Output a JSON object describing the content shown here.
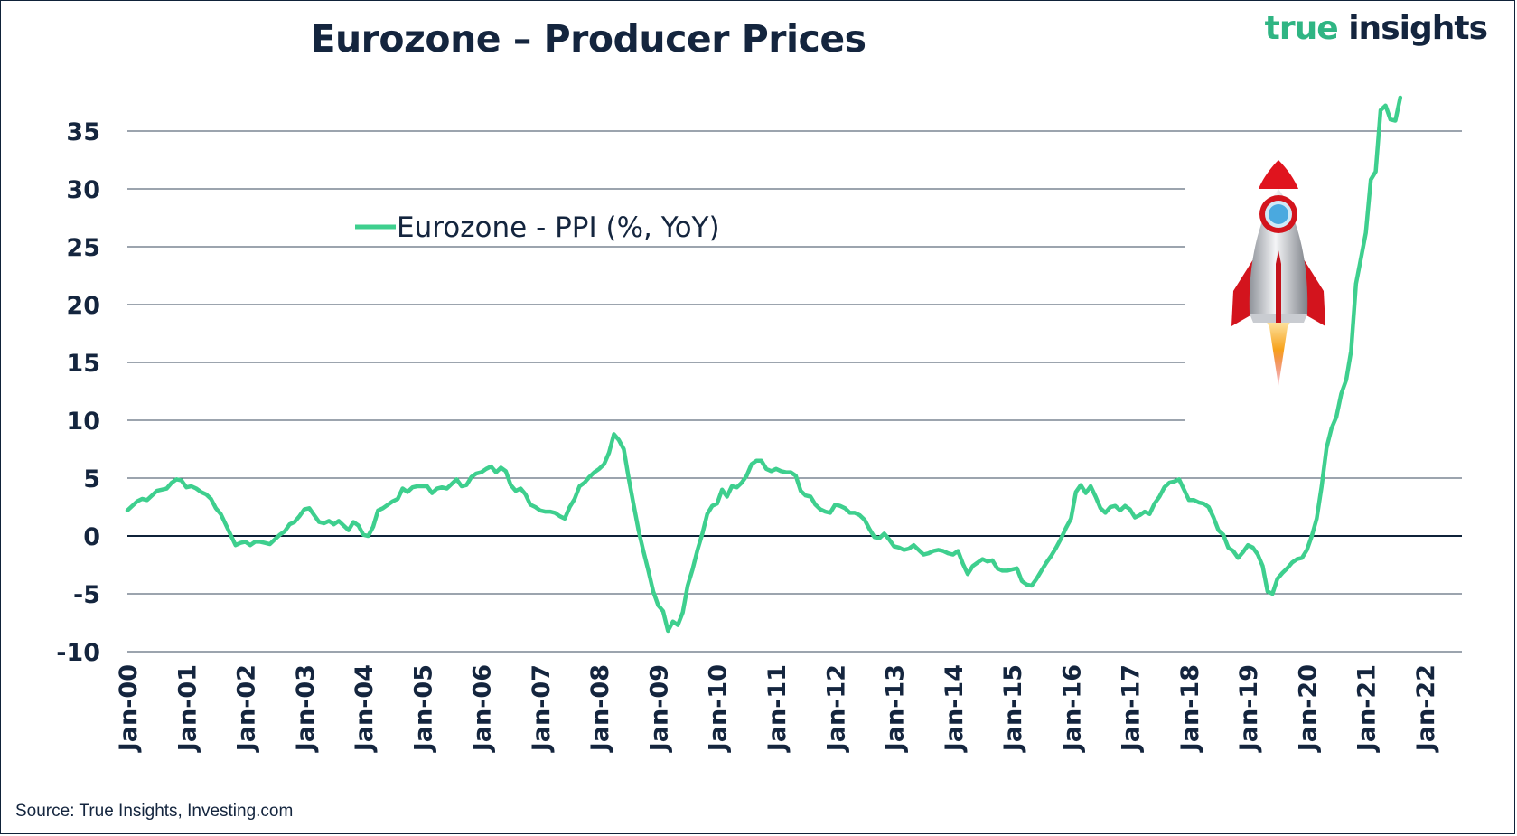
{
  "title": "Eurozone – Producer Prices",
  "logo": {
    "word1": "true",
    "word2": "insights"
  },
  "source": "Source: True Insights, Investing.com",
  "colors": {
    "line": "#3ecf8e",
    "text": "#14253e",
    "grid": "#1f3048",
    "rocket_body": "#c9ccd1",
    "rocket_red": "#e0141e",
    "flame": "#f7a21b"
  },
  "icons": [
    "rocket-icon"
  ],
  "chart_data": {
    "type": "line",
    "title": "Eurozone – Producer Prices",
    "legend_position": "upper-left",
    "grid": "horizontal",
    "ylim": [
      -10,
      38
    ],
    "yticks": [
      35,
      30,
      25,
      20,
      15,
      10,
      5,
      0,
      -5,
      -10
    ],
    "ytick_labels": [
      "35",
      "30",
      "25",
      "20",
      "15",
      "10",
      "5",
      "0",
      "-5",
      "-10"
    ],
    "xtick_labels": [
      "Jan-00",
      "Jan-01",
      "Jan-02",
      "Jan-03",
      "Jan-04",
      "Jan-05",
      "Jan-06",
      "Jan-07",
      "Jan-08",
      "Jan-09",
      "Jan-10",
      "Jan-11",
      "Jan-12",
      "Jan-13",
      "Jan-14",
      "Jan-15",
      "Jan-16",
      "Jan-17",
      "Jan-18",
      "Jan-19",
      "Jan-20",
      "Jan-21",
      "Jan-22"
    ],
    "series": [
      {
        "name": "Eurozone - PPI (%, YoY)",
        "x_start": "2000-01",
        "frequency": "monthly",
        "values": [
          2.2,
          2.6,
          3.0,
          3.2,
          3.1,
          3.5,
          3.9,
          4.0,
          4.1,
          4.6,
          4.9,
          4.8,
          4.2,
          4.3,
          4.1,
          3.8,
          3.6,
          3.2,
          2.4,
          1.9,
          1.0,
          0.1,
          -0.8,
          -0.6,
          -0.5,
          -0.8,
          -0.5,
          -0.5,
          -0.6,
          -0.7,
          -0.3,
          0.1,
          0.4,
          1.0,
          1.2,
          1.7,
          2.3,
          2.4,
          1.8,
          1.2,
          1.1,
          1.3,
          1.0,
          1.3,
          0.9,
          0.5,
          1.2,
          0.9,
          0.1,
          0.0,
          0.8,
          2.2,
          2.4,
          2.7,
          3.0,
          3.2,
          4.1,
          3.8,
          4.2,
          4.3,
          4.3,
          4.3,
          3.7,
          4.1,
          4.2,
          4.1,
          4.5,
          4.9,
          4.3,
          4.4,
          5.1,
          5.4,
          5.5,
          5.8,
          6.0,
          5.5,
          5.9,
          5.6,
          4.4,
          3.9,
          4.1,
          3.6,
          2.7,
          2.5,
          2.2,
          2.1,
          2.1,
          2.0,
          1.7,
          1.5,
          2.5,
          3.2,
          4.3,
          4.6,
          5.1,
          5.5,
          5.8,
          6.2,
          7.2,
          8.8,
          8.3,
          7.5,
          5.0,
          2.7,
          0.5,
          -1.3,
          -3.0,
          -4.8,
          -6.0,
          -6.5,
          -8.2,
          -7.4,
          -7.7,
          -6.6,
          -4.3,
          -2.9,
          -1.2,
          0.2,
          1.9,
          2.6,
          2.8,
          4.0,
          3.4,
          4.3,
          4.2,
          4.6,
          5.2,
          6.2,
          6.5,
          6.5,
          5.8,
          5.6,
          5.8,
          5.6,
          5.5,
          5.5,
          5.2,
          3.9,
          3.5,
          3.4,
          2.7,
          2.3,
          2.1,
          2.0,
          2.7,
          2.6,
          2.4,
          2.0,
          2.0,
          1.8,
          1.4,
          0.6,
          -0.1,
          -0.2,
          0.2,
          -0.3,
          -0.9,
          -1.0,
          -1.2,
          -1.1,
          -0.8,
          -1.2,
          -1.6,
          -1.5,
          -1.3,
          -1.2,
          -1.3,
          -1.5,
          -1.6,
          -1.3,
          -2.4,
          -3.3,
          -2.6,
          -2.3,
          -2.0,
          -2.2,
          -2.1,
          -2.8,
          -3.0,
          -3.0,
          -2.9,
          -2.8,
          -3.9,
          -4.2,
          -4.3,
          -3.7,
          -3.0,
          -2.3,
          -1.7,
          -1.0,
          -0.2,
          0.7,
          1.5,
          3.8,
          4.4,
          3.7,
          4.3,
          3.4,
          2.4,
          2.0,
          2.5,
          2.6,
          2.2,
          2.6,
          2.3,
          1.6,
          1.8,
          2.1,
          1.9,
          2.8,
          3.4,
          4.2,
          4.6,
          4.7,
          4.9,
          4.0,
          3.1,
          3.1,
          2.9,
          2.8,
          2.5,
          1.6,
          0.5,
          0.1,
          -1.0,
          -1.3,
          -1.9,
          -1.4,
          -0.8,
          -1.0,
          -1.6,
          -2.6,
          -4.8,
          -5.0,
          -3.7,
          -3.2,
          -2.8,
          -2.3,
          -2.0,
          -1.9,
          -1.2,
          0.0,
          1.5,
          4.3,
          7.6,
          9.3,
          10.3,
          12.3,
          13.5,
          16.0,
          21.8,
          24.0,
          26.2,
          30.8,
          31.5,
          36.8,
          37.2,
          36.0,
          35.9,
          37.9
        ]
      }
    ]
  }
}
